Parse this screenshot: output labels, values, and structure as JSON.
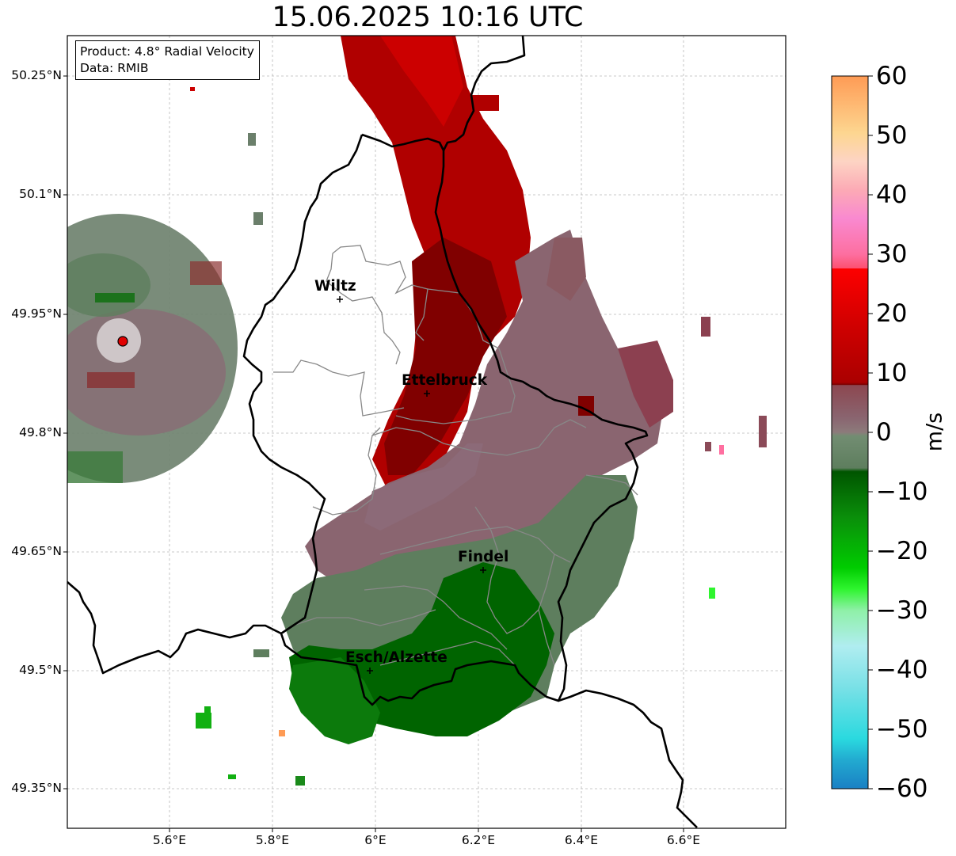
{
  "title": "15.06.2025 10:16 UTC",
  "info": {
    "product_line": "Product: 4.8° Radial Velocity",
    "data_line": "Data: RMIB"
  },
  "axes": {
    "lat_ticks": [
      "50.25°N",
      "50.1°N",
      "49.95°N",
      "49.8°N",
      "49.65°N",
      "49.5°N",
      "49.35°N"
    ],
    "lon_ticks": [
      "5.6°E",
      "5.8°E",
      "6°E",
      "6.2°E",
      "6.4°E",
      "6.6°E"
    ],
    "gridlines": true
  },
  "cities": [
    {
      "name": "Wiltz"
    },
    {
      "name": "Ettelbruck"
    },
    {
      "name": "Findel"
    },
    {
      "name": "Esch/Alzette"
    }
  ],
  "colorbar": {
    "label": "m/s",
    "ticks": [
      "60",
      "50",
      "40",
      "30",
      "20",
      "10",
      "0",
      "−10",
      "−20",
      "−30",
      "−40",
      "−50",
      "−60"
    ],
    "colors": {
      "inbound_strong": "#006400",
      "inbound_medium": "#12a312",
      "neutral_green": "#5e7e5e",
      "neutral_purple": "#8a6570",
      "outbound_dark": "#7a0000",
      "outbound_medium": "#b00000",
      "outbound_strong": "#dd0000"
    }
  },
  "radar_site": {
    "marker_color": "#e00000"
  }
}
